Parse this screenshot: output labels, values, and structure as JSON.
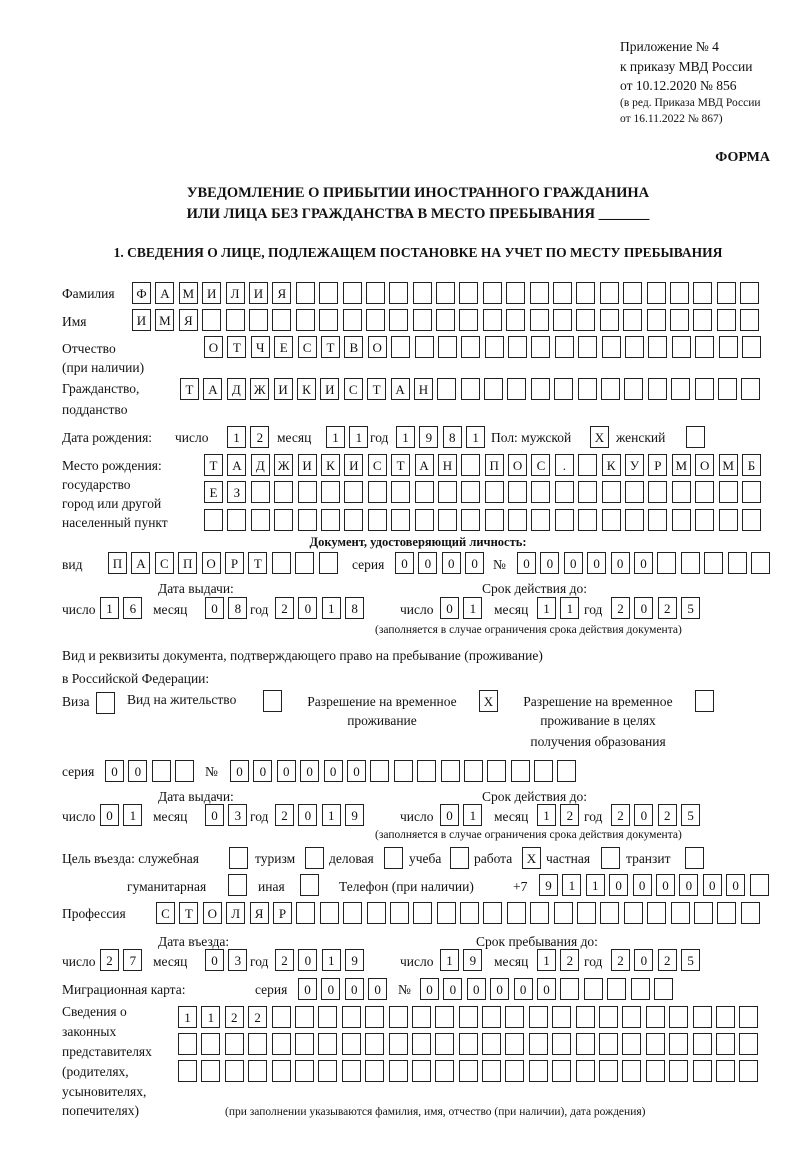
{
  "header": {
    "appendix": [
      "Приложение № 4",
      "к приказу МВД России",
      "от 10.12.2020 № 856"
    ],
    "revision": [
      "(в ред. Приказа МВД России",
      "от 16.11.2022 № 867)"
    ],
    "form_label": "ФОРМА",
    "title_line1": "УВЕДОМЛЕНИЕ О ПРИБЫТИИ ИНОСТРАННОГО ГРАЖДАНИНА",
    "title_line2": "ИЛИ ЛИЦА БЕЗ ГРАЖДАНСТВА В МЕСТО ПРЕБЫВАНИЯ _______",
    "section1": "1. СВЕДЕНИЯ О ЛИЦЕ, ПОДЛЕЖАЩЕМ ПОСТАНОВКЕ НА УЧЕТ ПО МЕСТУ ПРЕБЫВАНИЯ"
  },
  "labels": {
    "surname": "Фамилия",
    "name": "Имя",
    "patronymic": "Отчество",
    "patronymic_note": "(при наличии)",
    "citizenship": "Гражданство,",
    "citizenship2": "подданство",
    "birth_date": "Дата рождения:",
    "day": "число",
    "month": "месяц",
    "year": "год",
    "sex": "Пол: мужской",
    "female": "женский",
    "birth_place": [
      "Место рождения:",
      "государство",
      "город или другой",
      "населенный пункт"
    ],
    "id_doc": "Документ, удостоверяющий личность:",
    "kind": "вид",
    "series": "серия",
    "number": "№",
    "issue_date": "Дата выдачи:",
    "valid_until": "Срок действия до:",
    "validity_note": "(заполняется в случае ограничения срока действия документа)",
    "stay_doc_line1": "Вид и реквизиты документа, подтверждающего право на пребывание (проживание)",
    "stay_doc_line2": "в Российской Федерации:",
    "visa": "Виза",
    "residence": "Вид на жительство",
    "temp_permit": [
      "Разрешение на временное",
      "проживание"
    ],
    "temp_permit_edu": [
      "Разрешение на временное",
      "проживание в целях",
      "получения образования"
    ],
    "purpose": "Цель въезда: служебная",
    "tourism": "туризм",
    "business": "деловая",
    "study": "учеба",
    "work": "работа",
    "private": "частная",
    "transit": "транзит",
    "humanitarian": "гуманитарная",
    "other": "иная",
    "phone": "Телефон (при наличии)",
    "phone_prefix": "+7",
    "profession": "Профессия",
    "entry_date": "Дата въезда:",
    "stay_until": "Срок пребывания до:",
    "migration_card": "Миграционная карта:",
    "representatives": [
      "Сведения о",
      "законных",
      "представителях",
      "(родителях,",
      "усыновителях,",
      "попечителях)"
    ],
    "representatives_note": "(при заполнении указываются фамилия, имя, отчество (при наличии), дата рождения)"
  },
  "person": {
    "surname": [
      "Ф",
      "А",
      "М",
      "И",
      "Л",
      "И",
      "Я"
    ],
    "name": [
      "И",
      "М",
      "Я"
    ],
    "patronymic": [
      "О",
      "Т",
      "Ч",
      "Е",
      "С",
      "Т",
      "В",
      "О"
    ],
    "citizenship": [
      "Т",
      "А",
      "Д",
      "Ж",
      "И",
      "К",
      "И",
      "С",
      "Т",
      "А",
      "Н"
    ],
    "birth_day": [
      "1",
      "2"
    ],
    "birth_month": [
      "1",
      "1"
    ],
    "birth_year": [
      "1",
      "9",
      "8",
      "1"
    ],
    "sex_male": [
      "X"
    ],
    "sex_female": [],
    "birth_place_1": [
      "Т",
      "А",
      "Д",
      "Ж",
      "И",
      "К",
      "И",
      "С",
      "Т",
      "А",
      "Н",
      "",
      "П",
      "О",
      "С",
      ".",
      "",
      "К",
      "У",
      "Р",
      "М",
      "О",
      "М",
      "Б"
    ],
    "birth_place_2": [
      "Е",
      "З"
    ],
    "birth_place_3": []
  },
  "id_document": {
    "kind": [
      "П",
      "А",
      "С",
      "П",
      "О",
      "Р",
      "Т"
    ],
    "series": [
      "0",
      "0",
      "0",
      "0"
    ],
    "number": [
      "0",
      "0",
      "0",
      "0",
      "0",
      "0"
    ],
    "issue_day": [
      "1",
      "6"
    ],
    "issue_month": [
      "0",
      "8"
    ],
    "issue_year": [
      "2",
      "0",
      "1",
      "8"
    ],
    "valid_day": [
      "0",
      "1"
    ],
    "valid_month": [
      "1",
      "1"
    ],
    "valid_year": [
      "2",
      "0",
      "2",
      "5"
    ]
  },
  "stay_document": {
    "visa": [],
    "residence": [],
    "temp_permit": [
      "X"
    ],
    "temp_permit_edu": [],
    "series": [
      "0",
      "0"
    ],
    "number": [
      "0",
      "0",
      "0",
      "0",
      "0",
      "0"
    ],
    "issue_day": [
      "0",
      "1"
    ],
    "issue_month": [
      "0",
      "3"
    ],
    "issue_year": [
      "2",
      "0",
      "1",
      "9"
    ],
    "valid_day": [
      "0",
      "1"
    ],
    "valid_month": [
      "1",
      "2"
    ],
    "valid_year": [
      "2",
      "0",
      "2",
      "5"
    ]
  },
  "purpose": {
    "official": [],
    "tourism": [],
    "business": [],
    "study": [],
    "work": [
      "X"
    ],
    "private": [],
    "transit": [],
    "humanitarian": [],
    "other": []
  },
  "phone": [
    "9",
    "1",
    "1",
    "0",
    "0",
    "0",
    "0",
    "0",
    "0"
  ],
  "profession": [
    "С",
    "Т",
    "О",
    "Л",
    "Я",
    "Р"
  ],
  "entry": {
    "day": [
      "2",
      "7"
    ],
    "month": [
      "0",
      "3"
    ],
    "year": [
      "2",
      "0",
      "1",
      "9"
    ],
    "stay_day": [
      "1",
      "9"
    ],
    "stay_month": [
      "1",
      "2"
    ],
    "stay_year": [
      "2",
      "0",
      "2",
      "5"
    ]
  },
  "migration_card": {
    "series": [
      "0",
      "0",
      "0",
      "0"
    ],
    "number": [
      "0",
      "0",
      "0",
      "0",
      "0",
      "0"
    ]
  },
  "representatives": {
    "row1": [
      "1",
      "1",
      "2",
      "2"
    ],
    "row2": [],
    "row3": []
  }
}
